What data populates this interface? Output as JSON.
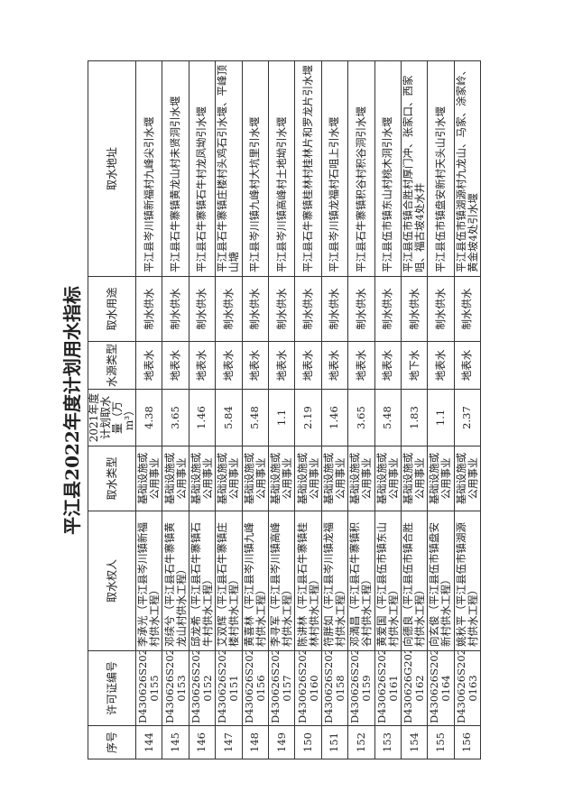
{
  "title": "平江县2022年度计划用水指标",
  "headers": [
    "序号",
    "许可证编号",
    "取水权人",
    "取水类型",
    "2021年度计划取水量（万m³）",
    "水源类型",
    "取水用途",
    "取水地址"
  ],
  "rows": [
    [
      "144",
      "D430626S2021-0155",
      "李承光（平江县岑川镇新福村供水工程）",
      "基础设施或公用事业",
      "4.38",
      "地表水",
      "制水供水",
      "平江县岑川镇新福村九峰尖引水堰"
    ],
    [
      "145",
      "D430626S2021-0153",
      "邓续兮（平江县石牛寨镇黄龙山村供水工程）",
      "基础设施或公用事业",
      "3.65",
      "地表水",
      "制水供水",
      "平江县石牛寨镇黄龙山村未贤洞引水堰"
    ],
    [
      "146",
      "D430626S2021-0152",
      "邱龙希（平江县石牛寨镇石牛村供水工程）",
      "基础设施或公用事业",
      "1.46",
      "地表水",
      "制水供水",
      "平江县石牛寨镇石牛村龙凤坳引水堰"
    ],
    [
      "147",
      "D430626S2021-0151",
      "艾双辉（平江县石牛寨镇庄楼村供水工程）",
      "基础设施或公用事业",
      "5.84",
      "地表水",
      "制水供水",
      "平江县石牛寨镇庄楼村头鸡石引水堰、平峰顶山塘"
    ],
    [
      "148",
      "D430626S2021-0156",
      "黄喜林（平江县岑川镇九峰村供水工程）",
      "基础设施或公用事业",
      "5.48",
      "地表水",
      "制水供水",
      "平江县岑川镇九峰村大坑里引水堰"
    ],
    [
      "149",
      "D430626S2021-0157",
      "李寻军（平江县岑川镇高峰村供水工程）",
      "基础设施或公用事业",
      "1.1",
      "地表水",
      "制水供水",
      "平江县岑川镇高峰村土地坳引水堰"
    ],
    [
      "150",
      "D430626S2021-0160",
      "陈讲林（平江县石牛寨镇桂林村供水工程）",
      "基础设施或公用事业",
      "2.19",
      "地表水",
      "制水供水",
      "平江县石牛寨镇桂林村桂林片和罗龙片引水堰"
    ],
    [
      "151",
      "D430626S2021-0158",
      "符胖如（平江县岑川镇龙福村供水工程）",
      "基础设施或公用事业",
      "1.46",
      "地表水",
      "制水供水",
      "平江县岑川镇龙福村石咀上引水堰"
    ],
    [
      "152",
      "D430626S2021-0159",
      "邓満昌（平江县石牛寨镇积谷村供水工程）",
      "基础设施或公用事业",
      "3.65",
      "地表水",
      "制水供水",
      "平江县石牛寨镇积谷村积谷洞引水堰"
    ],
    [
      "153",
      "D430626S2021-0161",
      "黄爱国（平江县伍市镇东山村供水工程）",
      "基础设施或公用事业",
      "5.48",
      "地表水",
      "制水供水",
      "平江县伍市镇东山村桃木洞引水堰"
    ],
    [
      "154",
      "D430626G2021-0162",
      "向德良（平江县伍市镇合胜村供水工程）",
      "基础设施或公用事业",
      "1.83",
      "地下水",
      "制水供水",
      "平江县伍市镇合胜村厚门冲、张家口、西家咀、福古坡4处水井"
    ],
    [
      "155",
      "D430626S2021-0164",
      "向玄俊（平江县伍市镇盘安新村供水工程）",
      "基础设施或公用事业",
      "1.1",
      "地表水",
      "制水供水",
      "平江县伍市镇盘安新村天头山引水堰"
    ],
    [
      "156",
      "D430626S2021-0163",
      "姚秋平（平江县伍市镇湖源村供水工程）",
      "基础设施或公用事业",
      "2.37",
      "地表水",
      "制水供水",
      "平江县伍市镇湖源村九龙山、马家、涂家岭、黄金坡4处引水堰"
    ]
  ]
}
